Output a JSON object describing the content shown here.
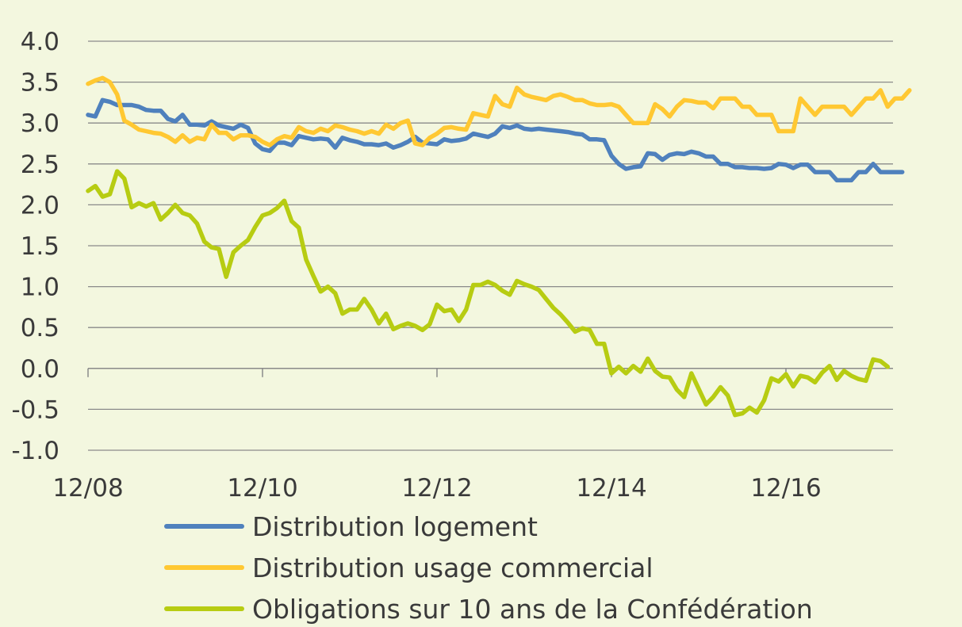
{
  "chart_data": {
    "type": "line",
    "title": "",
    "xlabel": "",
    "ylabel": "",
    "ylim": [
      -1.0,
      4.0
    ],
    "yticks": [
      "4.0",
      "3.5",
      "3.0",
      "2.5",
      "2.0",
      "1.5",
      "1.0",
      "0.5",
      "0.0",
      "-0.5",
      "-1.0"
    ],
    "xticks": [
      "12/08",
      "12/10",
      "12/12",
      "12/14",
      "12/16"
    ],
    "grid": true,
    "legend_position": "bottom",
    "colors": {
      "background": "#f3f7df",
      "grid": "#8a8a8a",
      "axis": "#8a8a8a",
      "text": "#3a3a3a"
    },
    "x_start": "12/08",
    "x_end": "05/17",
    "x_unit": "month",
    "series": [
      {
        "name": "Distribution logement",
        "color": "#4f81bd",
        "values": [
          3.1,
          3.08,
          3.28,
          3.26,
          3.22,
          3.22,
          3.22,
          3.2,
          3.16,
          3.15,
          3.15,
          3.05,
          3.02,
          3.1,
          2.98,
          2.98,
          2.97,
          3.02,
          2.97,
          2.95,
          2.93,
          2.98,
          2.94,
          2.75,
          2.68,
          2.66,
          2.76,
          2.76,
          2.73,
          2.84,
          2.82,
          2.8,
          2.81,
          2.8,
          2.7,
          2.82,
          2.79,
          2.77,
          2.74,
          2.74,
          2.73,
          2.75,
          2.7,
          2.73,
          2.77,
          2.83,
          2.76,
          2.75,
          2.74,
          2.8,
          2.78,
          2.79,
          2.81,
          2.87,
          2.85,
          2.83,
          2.87,
          2.96,
          2.94,
          2.97,
          2.93,
          2.92,
          2.93,
          2.92,
          2.91,
          2.9,
          2.89,
          2.87,
          2.86,
          2.8,
          2.8,
          2.79,
          2.6,
          2.5,
          2.44,
          2.46,
          2.47,
          2.63,
          2.62,
          2.55,
          2.61,
          2.63,
          2.62,
          2.65,
          2.63,
          2.59,
          2.59,
          2.5,
          2.5,
          2.46,
          2.46,
          2.45,
          2.45,
          2.44,
          2.45,
          2.5,
          2.49,
          2.45,
          2.49,
          2.49,
          2.4,
          2.4,
          2.4,
          2.3,
          2.3,
          2.3,
          2.4,
          2.4,
          2.5,
          2.4,
          2.4,
          2.4,
          2.4
        ]
      },
      {
        "name": "Distribution usage commercial",
        "color": "#ffc832",
        "values": [
          3.48,
          3.52,
          3.55,
          3.5,
          3.35,
          3.03,
          2.98,
          2.92,
          2.9,
          2.88,
          2.87,
          2.83,
          2.77,
          2.85,
          2.77,
          2.82,
          2.8,
          2.98,
          2.88,
          2.88,
          2.8,
          2.85,
          2.85,
          2.83,
          2.77,
          2.73,
          2.8,
          2.84,
          2.82,
          2.95,
          2.9,
          2.88,
          2.93,
          2.9,
          2.97,
          2.95,
          2.92,
          2.9,
          2.87,
          2.9,
          2.87,
          2.98,
          2.93,
          3.0,
          3.03,
          2.75,
          2.73,
          2.82,
          2.87,
          2.94,
          2.95,
          2.93,
          2.92,
          3.12,
          3.1,
          3.08,
          3.33,
          3.23,
          3.2,
          3.43,
          3.35,
          3.32,
          3.3,
          3.28,
          3.33,
          3.35,
          3.32,
          3.28,
          3.28,
          3.24,
          3.22,
          3.22,
          3.23,
          3.2,
          3.1,
          3.0,
          3.0,
          3.0,
          3.23,
          3.17,
          3.08,
          3.2,
          3.28,
          3.27,
          3.25,
          3.25,
          3.18,
          3.3,
          3.3,
          3.3,
          3.2,
          3.2,
          3.1,
          3.1,
          3.1,
          2.9,
          2.9,
          2.9,
          3.3,
          3.2,
          3.1,
          3.2,
          3.2,
          3.2,
          3.2,
          3.1,
          3.2,
          3.3,
          3.3,
          3.4,
          3.2,
          3.3,
          3.3,
          3.4
        ]
      },
      {
        "name": "Obligations sur 10 ans de la Confédération",
        "color": "#b7cc12",
        "values": [
          2.17,
          2.23,
          2.1,
          2.13,
          2.41,
          2.32,
          1.97,
          2.02,
          1.98,
          2.02,
          1.82,
          1.9,
          2.0,
          1.9,
          1.87,
          1.77,
          1.55,
          1.48,
          1.46,
          1.12,
          1.42,
          1.5,
          1.57,
          1.73,
          1.87,
          1.9,
          1.96,
          2.05,
          1.8,
          1.72,
          1.33,
          1.13,
          0.94,
          1.0,
          0.92,
          0.67,
          0.72,
          0.72,
          0.85,
          0.72,
          0.55,
          0.67,
          0.48,
          0.52,
          0.55,
          0.52,
          0.47,
          0.54,
          0.78,
          0.7,
          0.72,
          0.58,
          0.72,
          1.02,
          1.02,
          1.06,
          1.02,
          0.95,
          0.9,
          1.07,
          1.03,
          1.0,
          0.96,
          0.85,
          0.74,
          0.66,
          0.56,
          0.45,
          0.49,
          0.47,
          0.3,
          0.3,
          -0.06,
          0.02,
          -0.06,
          0.03,
          -0.04,
          0.12,
          -0.03,
          -0.1,
          -0.11,
          -0.26,
          -0.35,
          -0.06,
          -0.25,
          -0.44,
          -0.35,
          -0.23,
          -0.33,
          -0.57,
          -0.55,
          -0.48,
          -0.54,
          -0.39,
          -0.12,
          -0.16,
          -0.07,
          -0.22,
          -0.09,
          -0.11,
          -0.17,
          -0.05,
          0.03,
          -0.14,
          -0.03,
          -0.09,
          -0.13,
          -0.15,
          0.11,
          0.09,
          0.02
        ]
      }
    ]
  }
}
